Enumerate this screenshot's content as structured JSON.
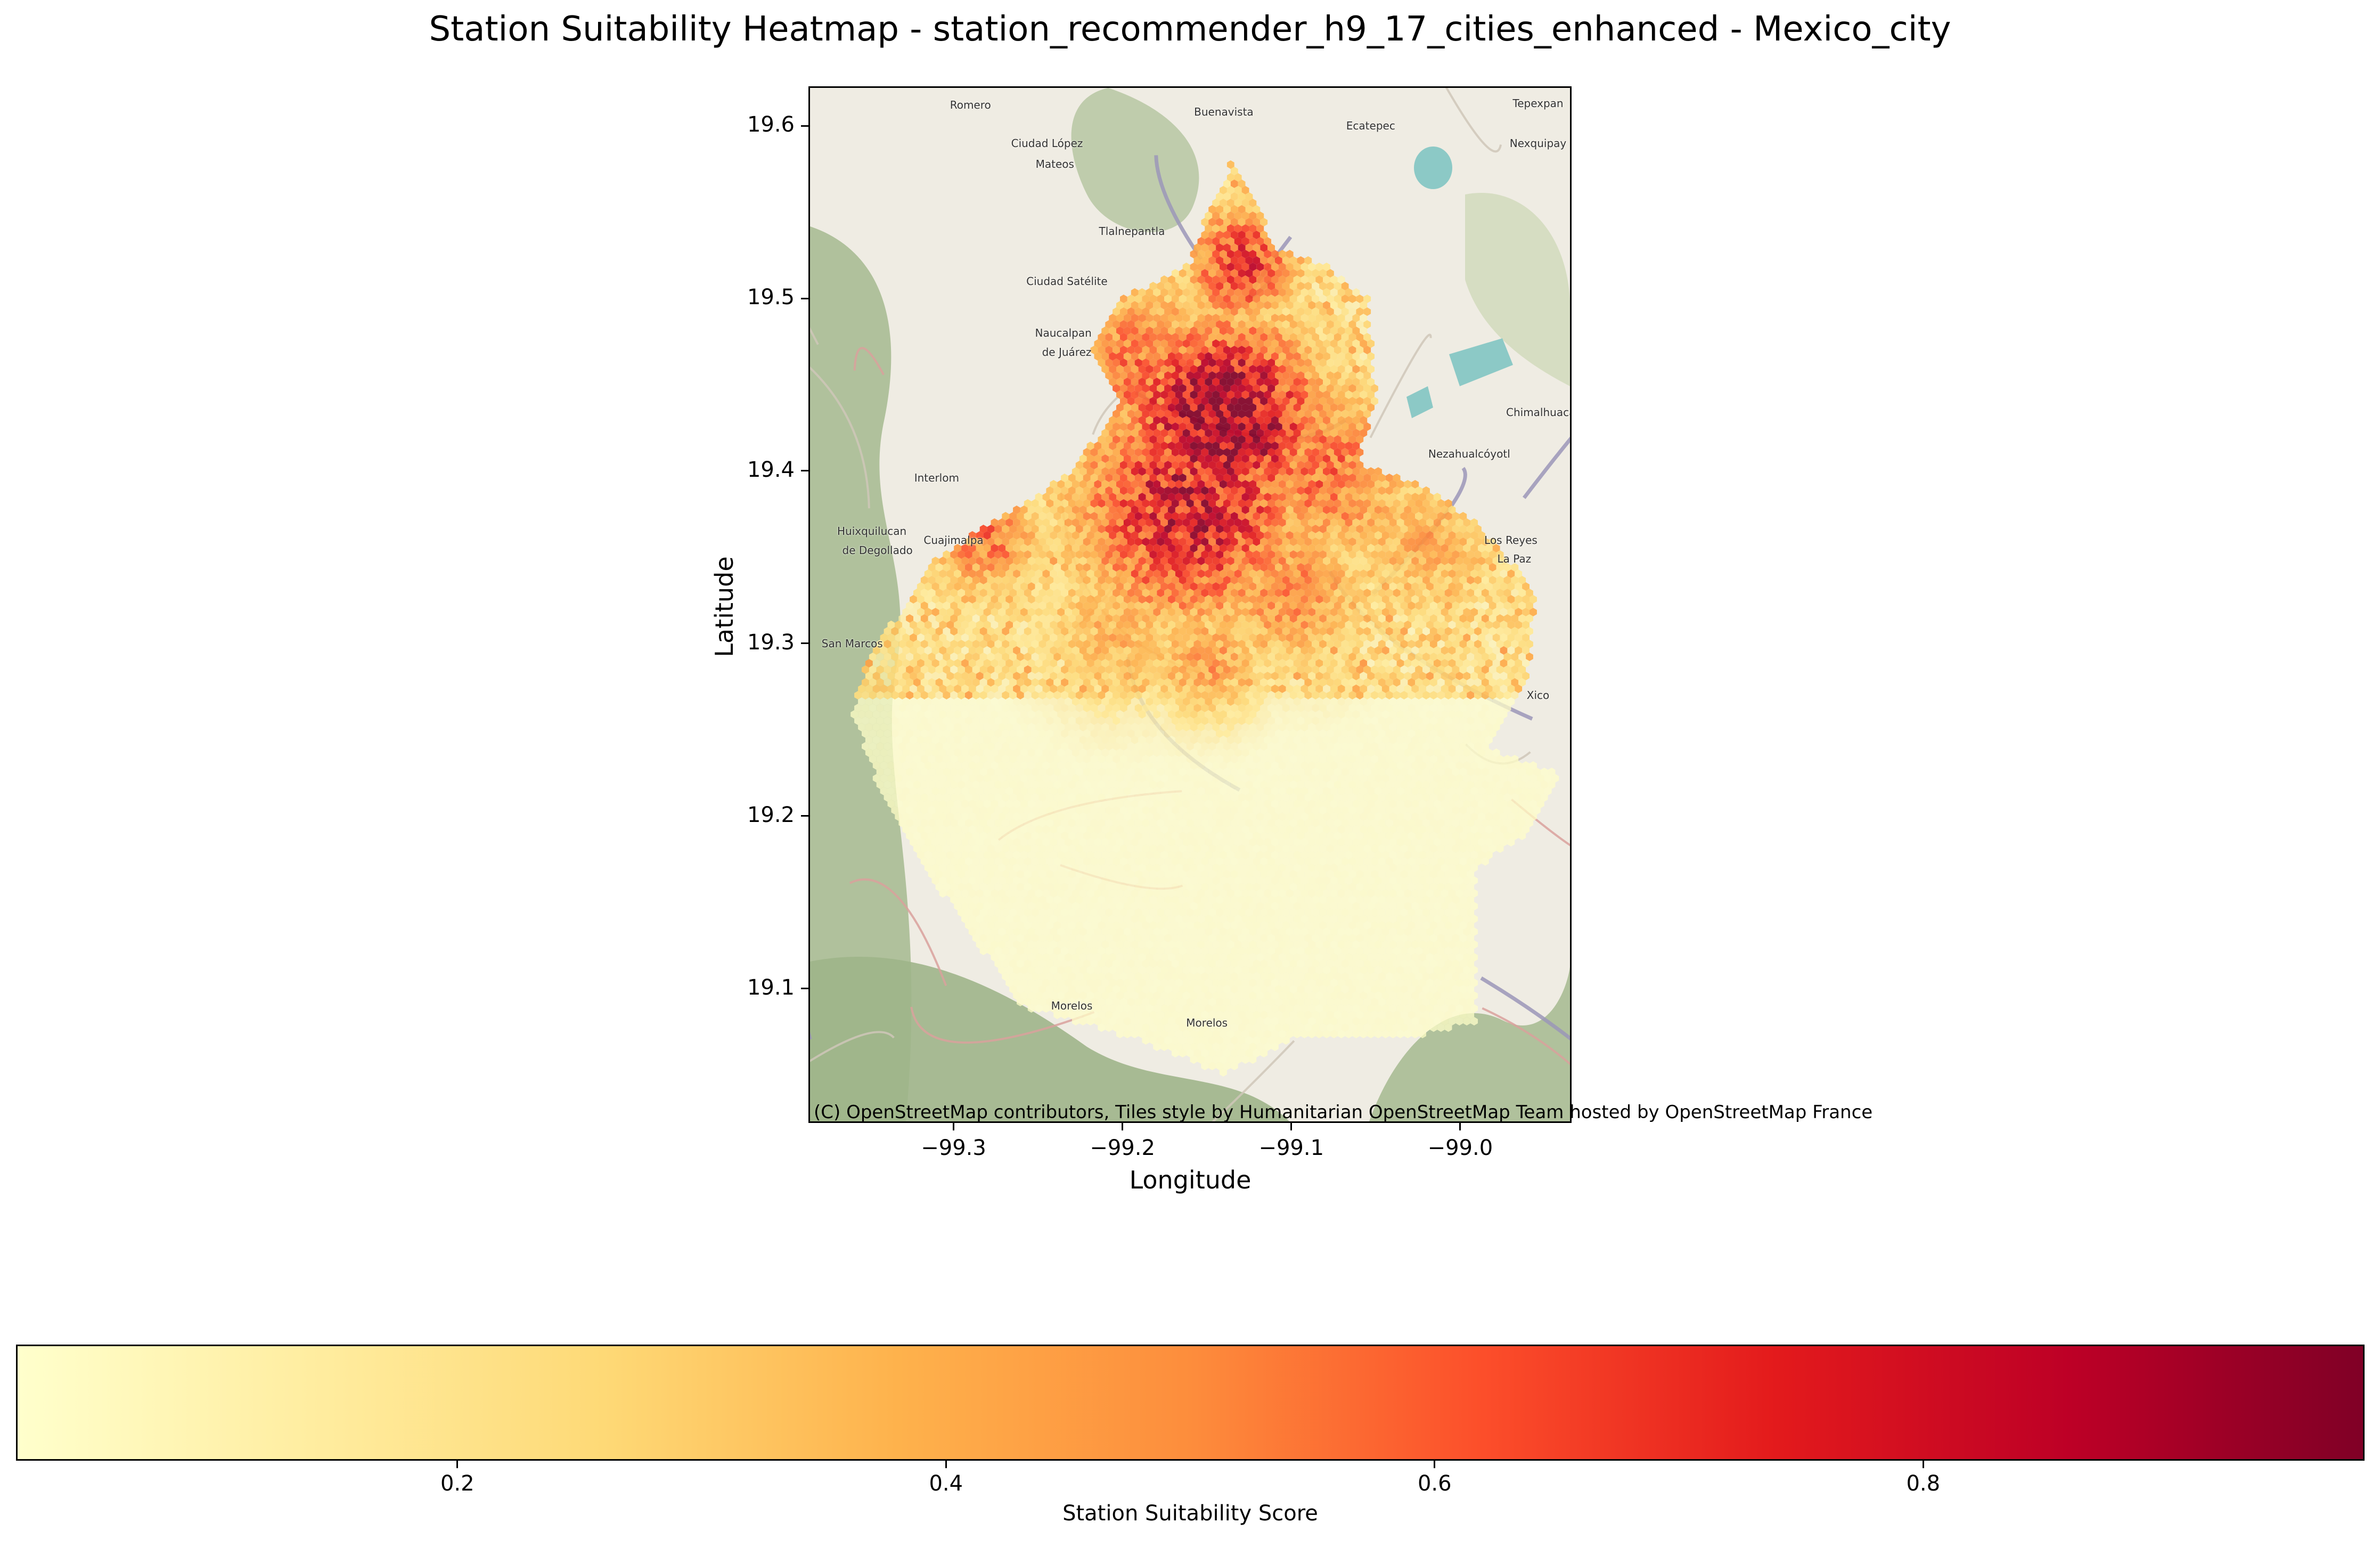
{
  "title": "Station Suitability Heatmap - station_recommender_h9_17_cities_enhanced - Mexico_city",
  "axes": {
    "xlabel": "Longitude",
    "ylabel": "Latitude",
    "xlim": [
      -99.385,
      -98.935
    ],
    "ylim": [
      19.023,
      19.622
    ],
    "xticks": [
      -99.3,
      -99.2,
      -99.1,
      -99.0
    ],
    "yticks": [
      19.1,
      19.2,
      19.3,
      19.4,
      19.5,
      19.6
    ],
    "xtick_labels": [
      "−99.3",
      "−99.2",
      "−99.1",
      "−99.0"
    ],
    "ytick_labels": [
      "19.1",
      "19.2",
      "19.3",
      "19.4",
      "19.5",
      "19.6"
    ]
  },
  "attribution": "(C) OpenStreetMap contributors, Tiles style by Humanitarian OpenStreetMap Team hosted by OpenStreetMap France",
  "colorbar": {
    "label": "Station Suitability Score",
    "range": [
      0.02,
      0.98
    ],
    "ticks": [
      0.2,
      0.4,
      0.6,
      0.8
    ],
    "tick_labels": [
      "0.2",
      "0.4",
      "0.6",
      "0.8"
    ],
    "colormap": "YlOrRd",
    "colors": [
      "#ffffcc",
      "#ffeda0",
      "#fed976",
      "#feb24c",
      "#fd8d3c",
      "#fc4e2a",
      "#e31a1c",
      "#bd0026",
      "#800026"
    ]
  },
  "basemap_labels": [
    {
      "text": "Romero",
      "lon": -99.29,
      "lat": 19.612
    },
    {
      "text": "Buenavista",
      "lon": -99.14,
      "lat": 19.608
    },
    {
      "text": "Tepexpan",
      "lon": -98.948,
      "lat": 19.613
    },
    {
      "text": "Ecatepec",
      "lon": -99.053,
      "lat": 19.6
    },
    {
      "text": "Nexquipay",
      "lon": -98.945,
      "lat": 19.59
    },
    {
      "text": "Ciudad López",
      "lon": -99.247,
      "lat": 19.59
    },
    {
      "text": "Mateos",
      "lon": -99.24,
      "lat": 19.578
    },
    {
      "text": "Tlalnepantla",
      "lon": -99.195,
      "lat": 19.539
    },
    {
      "text": "Ciudad Satélite",
      "lon": -99.238,
      "lat": 19.51
    },
    {
      "text": "Naucalpan",
      "lon": -99.235,
      "lat": 19.48
    },
    {
      "text": "de Juárez",
      "lon": -99.233,
      "lat": 19.469
    },
    {
      "text": "Chimalhuacán",
      "lon": -98.95,
      "lat": 19.434
    },
    {
      "text": "Nezahualcóyotl",
      "lon": -99.0,
      "lat": 19.41
    },
    {
      "text": "Interlom",
      "lon": -99.31,
      "lat": 19.396
    },
    {
      "text": "Huixquilucan",
      "lon": -99.35,
      "lat": 19.365
    },
    {
      "text": "de Degollado",
      "lon": -99.347,
      "lat": 19.354
    },
    {
      "text": "Los Reyes",
      "lon": -98.97,
      "lat": 19.36
    },
    {
      "text": "La Paz",
      "lon": -98.968,
      "lat": 19.349
    },
    {
      "text": "Xico",
      "lon": -98.94,
      "lat": 19.27
    },
    {
      "text": "San Marcos",
      "lon": -99.36,
      "lat": 19.3
    },
    {
      "text": "Cuajimalpa",
      "lon": -99.3,
      "lat": 19.36
    },
    {
      "text": "Morelos",
      "lon": -99.23,
      "lat": 19.09
    },
    {
      "text": "Morelos",
      "lon": -99.15,
      "lat": 19.08
    }
  ]
}
